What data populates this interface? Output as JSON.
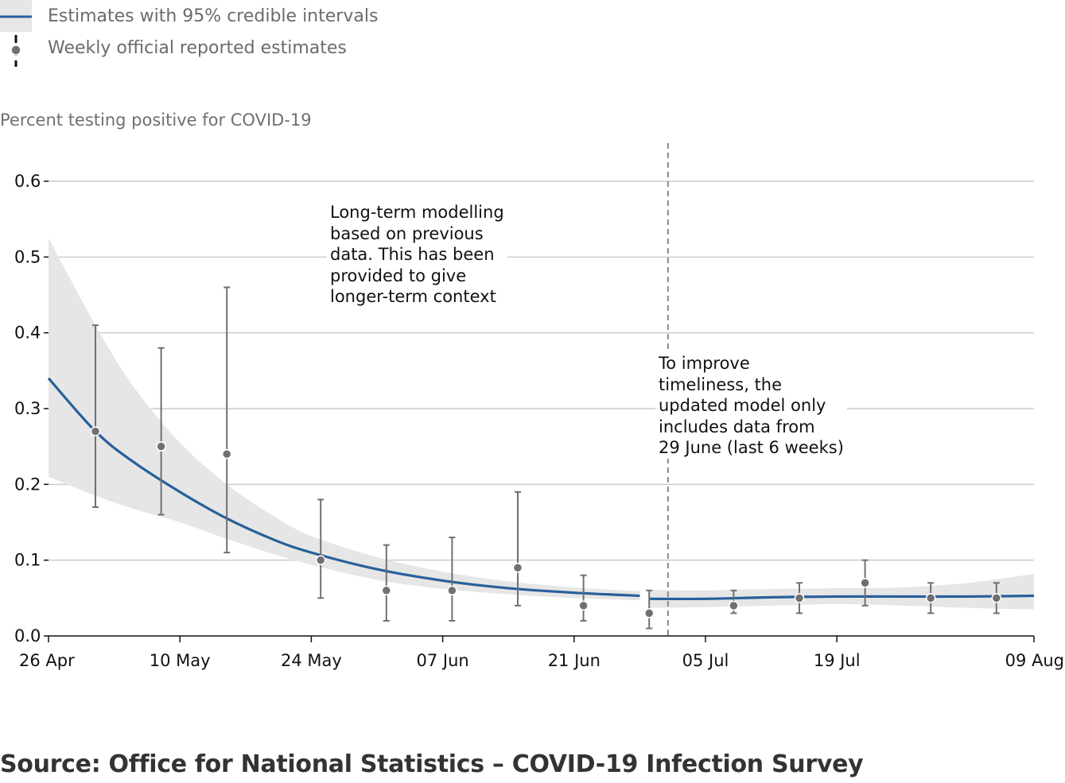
{
  "legend": {
    "estimates_label": "Estimates with 95% credible intervals",
    "reported_label": "Weekly official reported estimates"
  },
  "colors": {
    "line": "#27609a",
    "band": "#e6e6e6",
    "points": "#707070",
    "grid": "#cccccc",
    "divider": "#888888"
  },
  "annotations": {
    "long_term": "Long-term modelling\nbased on previous\ndata. This has been\nprovided to give\nlonger-term context",
    "timeliness": "To improve\ntimeliness, the\nupdated model only\nincludes data from\n29 June (last 6 weeks)"
  },
  "source": "Source: Office for National Statistics – COVID-19 Infection Survey",
  "chart_data": {
    "type": "line",
    "ylabel": "Percent testing positive for COVID-19",
    "ylim": [
      0,
      0.6
    ],
    "yticks": [
      0.0,
      0.1,
      0.2,
      0.3,
      0.4,
      0.5,
      0.6
    ],
    "ytick_labels": [
      "0.0",
      "0.1",
      "0.2",
      "0.3",
      "0.4",
      "0.5",
      "0.6"
    ],
    "xlim": [
      "2020-04-26",
      "2020-08-09"
    ],
    "xticks": [
      "2020-04-26",
      "2020-05-10",
      "2020-05-24",
      "2020-06-07",
      "2020-06-21",
      "2020-07-05",
      "2020-07-19",
      "2020-08-09"
    ],
    "xtick_labels": [
      "26 Apr",
      "10 May",
      "24 May",
      "07 Jun",
      "21 Jun",
      "05 Jul",
      "19 Jul",
      "09 Aug"
    ],
    "divider_date": "2020-07-01",
    "grid": true,
    "legend_position": "top-left",
    "series": [
      {
        "name": "Estimates with 95% credible intervals",
        "segment": "long-term",
        "x": [
          "2020-04-26",
          "2020-05-01",
          "2020-05-05",
          "2020-05-10",
          "2020-05-15",
          "2020-05-20",
          "2020-05-24",
          "2020-05-31",
          "2020-06-07",
          "2020-06-14",
          "2020-06-21",
          "2020-06-28"
        ],
        "y": [
          0.34,
          0.27,
          0.23,
          0.19,
          0.155,
          0.127,
          0.11,
          0.088,
          0.073,
          0.063,
          0.057,
          0.053
        ],
        "lower": [
          0.21,
          0.185,
          0.168,
          0.15,
          0.128,
          0.108,
          0.094,
          0.074,
          0.062,
          0.055,
          0.05,
          0.047
        ],
        "upper": [
          0.525,
          0.41,
          0.33,
          0.255,
          0.2,
          0.158,
          0.132,
          0.104,
          0.085,
          0.072,
          0.064,
          0.059
        ]
      },
      {
        "name": "Estimates with 95% credible intervals",
        "segment": "updated",
        "x": [
          "2020-06-29",
          "2020-07-05",
          "2020-07-12",
          "2020-07-19",
          "2020-07-26",
          "2020-08-02",
          "2020-08-09"
        ],
        "y": [
          0.049,
          0.049,
          0.051,
          0.052,
          0.052,
          0.052,
          0.053
        ],
        "lower": [
          0.037,
          0.038,
          0.04,
          0.042,
          0.04,
          0.037,
          0.035
        ],
        "upper": [
          0.061,
          0.06,
          0.062,
          0.063,
          0.064,
          0.07,
          0.082
        ]
      }
    ],
    "reported": {
      "name": "Weekly official reported estimates",
      "x": [
        "2020-05-01",
        "2020-05-08",
        "2020-05-15",
        "2020-05-25",
        "2020-06-01",
        "2020-06-08",
        "2020-06-15",
        "2020-06-22",
        "2020-06-29",
        "2020-07-08",
        "2020-07-15",
        "2020-07-22",
        "2020-07-29",
        "2020-08-05"
      ],
      "y": [
        0.27,
        0.25,
        0.24,
        0.1,
        0.06,
        0.06,
        0.09,
        0.04,
        0.03,
        0.04,
        0.05,
        0.07,
        0.05,
        0.05
      ],
      "lower": [
        0.17,
        0.16,
        0.11,
        0.05,
        0.02,
        0.02,
        0.04,
        0.02,
        0.01,
        0.03,
        0.03,
        0.04,
        0.03,
        0.03
      ],
      "upper": [
        0.41,
        0.38,
        0.46,
        0.18,
        0.12,
        0.13,
        0.19,
        0.08,
        0.06,
        0.06,
        0.07,
        0.1,
        0.07,
        0.07
      ]
    }
  }
}
